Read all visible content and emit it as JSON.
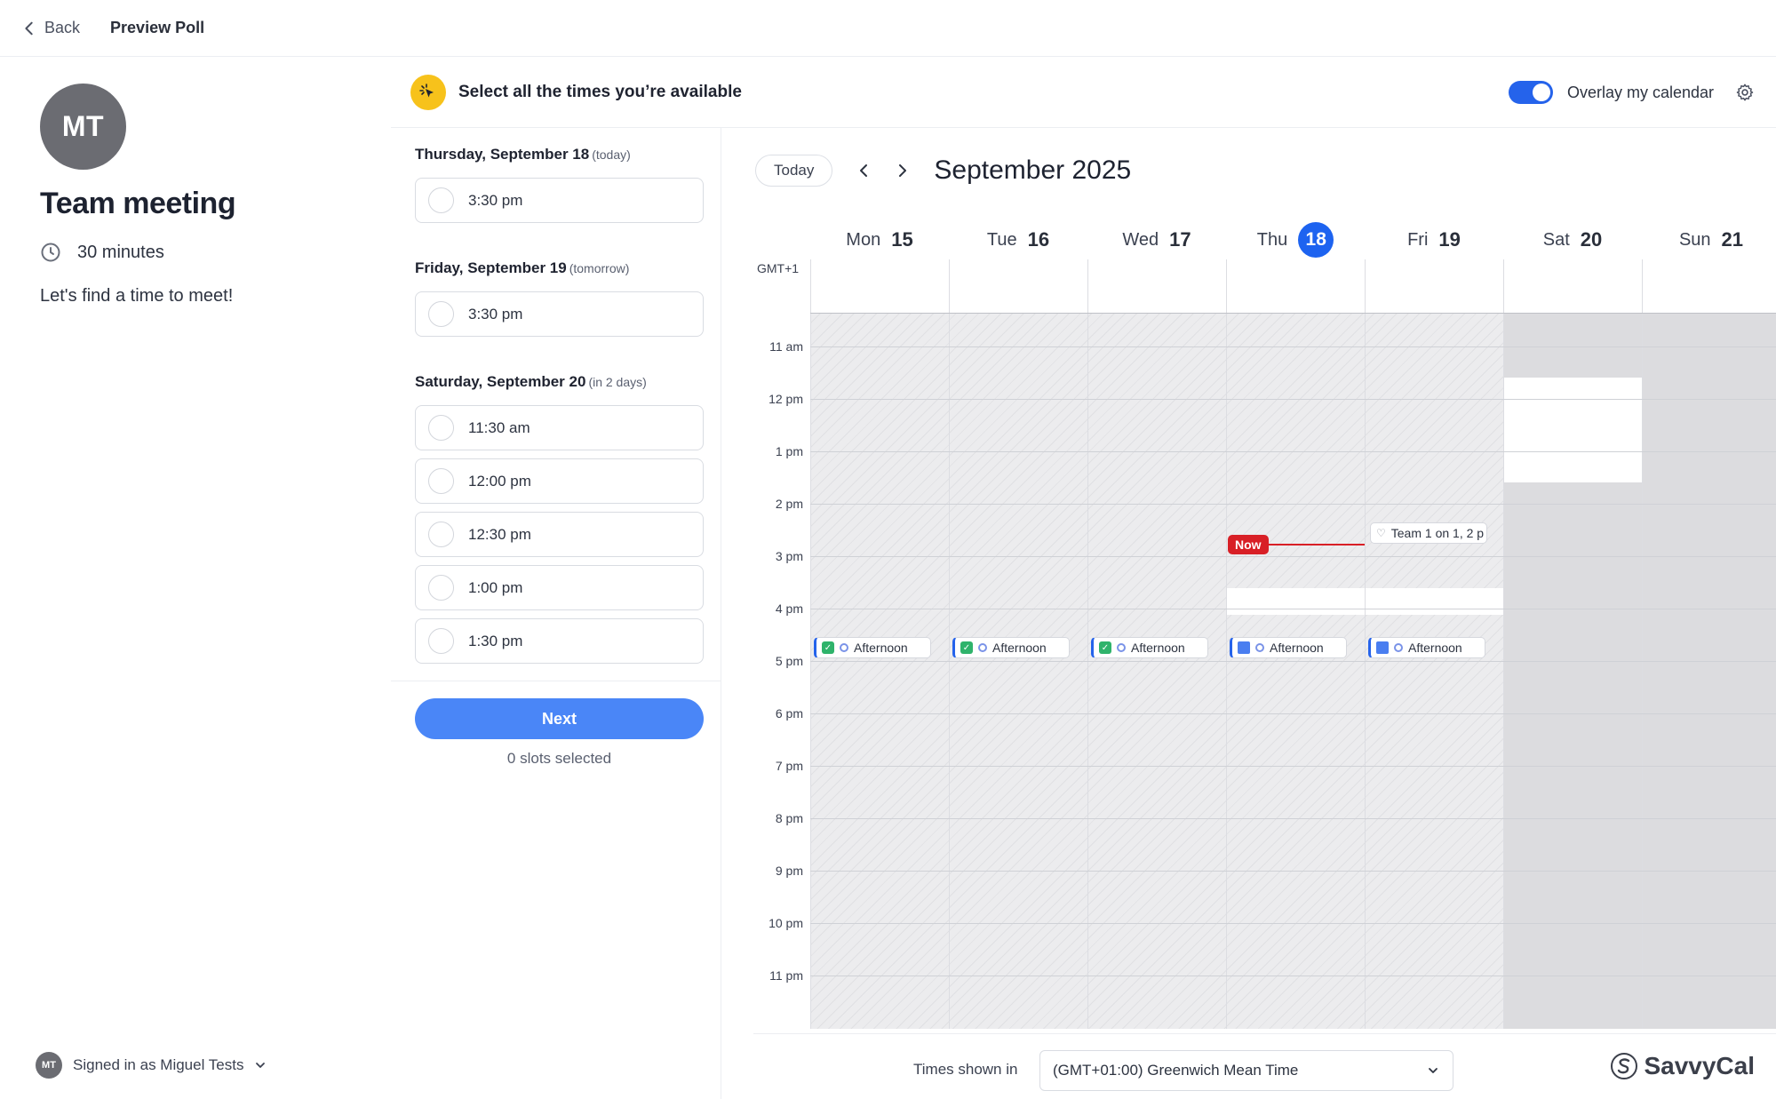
{
  "topbar": {
    "back_label": "Back",
    "title": "Preview Poll"
  },
  "event": {
    "avatar_initials": "MT",
    "title": "Team meeting",
    "duration": "30 minutes",
    "description": "Let's find a time to meet!"
  },
  "user": {
    "initials": "MT",
    "signed_in": "Signed in as Miguel Tests"
  },
  "instruction": {
    "text": "Select all the times you’re available",
    "overlay_label": "Overlay my calendar",
    "overlay_on": true
  },
  "slot_groups": [
    {
      "day": "Thursday, September 18",
      "sub": "(today)",
      "slots": [
        "3:30 pm"
      ]
    },
    {
      "day": "Friday, September 19",
      "sub": "(tomorrow)",
      "slots": [
        "3:30 pm"
      ]
    },
    {
      "day": "Saturday, September 20",
      "sub": "(in 2 days)",
      "slots": [
        "11:30 am",
        "12:00 pm",
        "12:30 pm",
        "1:00 pm",
        "1:30 pm"
      ]
    }
  ],
  "actions": {
    "next_label": "Next",
    "selected_count": "0 slots selected"
  },
  "calendar": {
    "today_label": "Today",
    "month": "September 2025",
    "timezone_short": "GMT+1",
    "days": [
      {
        "name": "Mon",
        "num": "15"
      },
      {
        "name": "Tue",
        "num": "16"
      },
      {
        "name": "Wed",
        "num": "17"
      },
      {
        "name": "Thu",
        "num": "18",
        "today": true
      },
      {
        "name": "Fri",
        "num": "19"
      },
      {
        "name": "Sat",
        "num": "20"
      },
      {
        "name": "Sun",
        "num": "21"
      }
    ],
    "hours": [
      "11 am",
      "12 pm",
      "1 pm",
      "2 pm",
      "3 pm",
      "4 pm",
      "5 pm",
      "6 pm",
      "7 pm",
      "8 pm",
      "9 pm",
      "10 pm",
      "11 pm"
    ],
    "now_label": "Now",
    "events": [
      {
        "day": "Mon",
        "title": "Afternoon",
        "icon": "check-icon"
      },
      {
        "day": "Tue",
        "title": "Afternoon",
        "icon": "check-icon"
      },
      {
        "day": "Wed",
        "title": "Afternoon",
        "icon": "check-icon"
      },
      {
        "day": "Thu",
        "title": "Afternoon",
        "icon": "calendar-icon"
      },
      {
        "day": "Fri",
        "title": "Afternoon",
        "icon": "calendar-icon"
      },
      {
        "day": "Fri",
        "title": "Team 1 on 1, 2 p",
        "icon": "heart-icon"
      }
    ]
  },
  "footer": {
    "tz_label": "Times shown in",
    "tz_value": "(GMT+01:00) Greenwich Mean Time",
    "brand": "SavvyCal"
  },
  "colors": {
    "accent": "#2563eb",
    "button": "#4a86f7",
    "now": "#d81f26",
    "highlight": "#f7c21b"
  }
}
